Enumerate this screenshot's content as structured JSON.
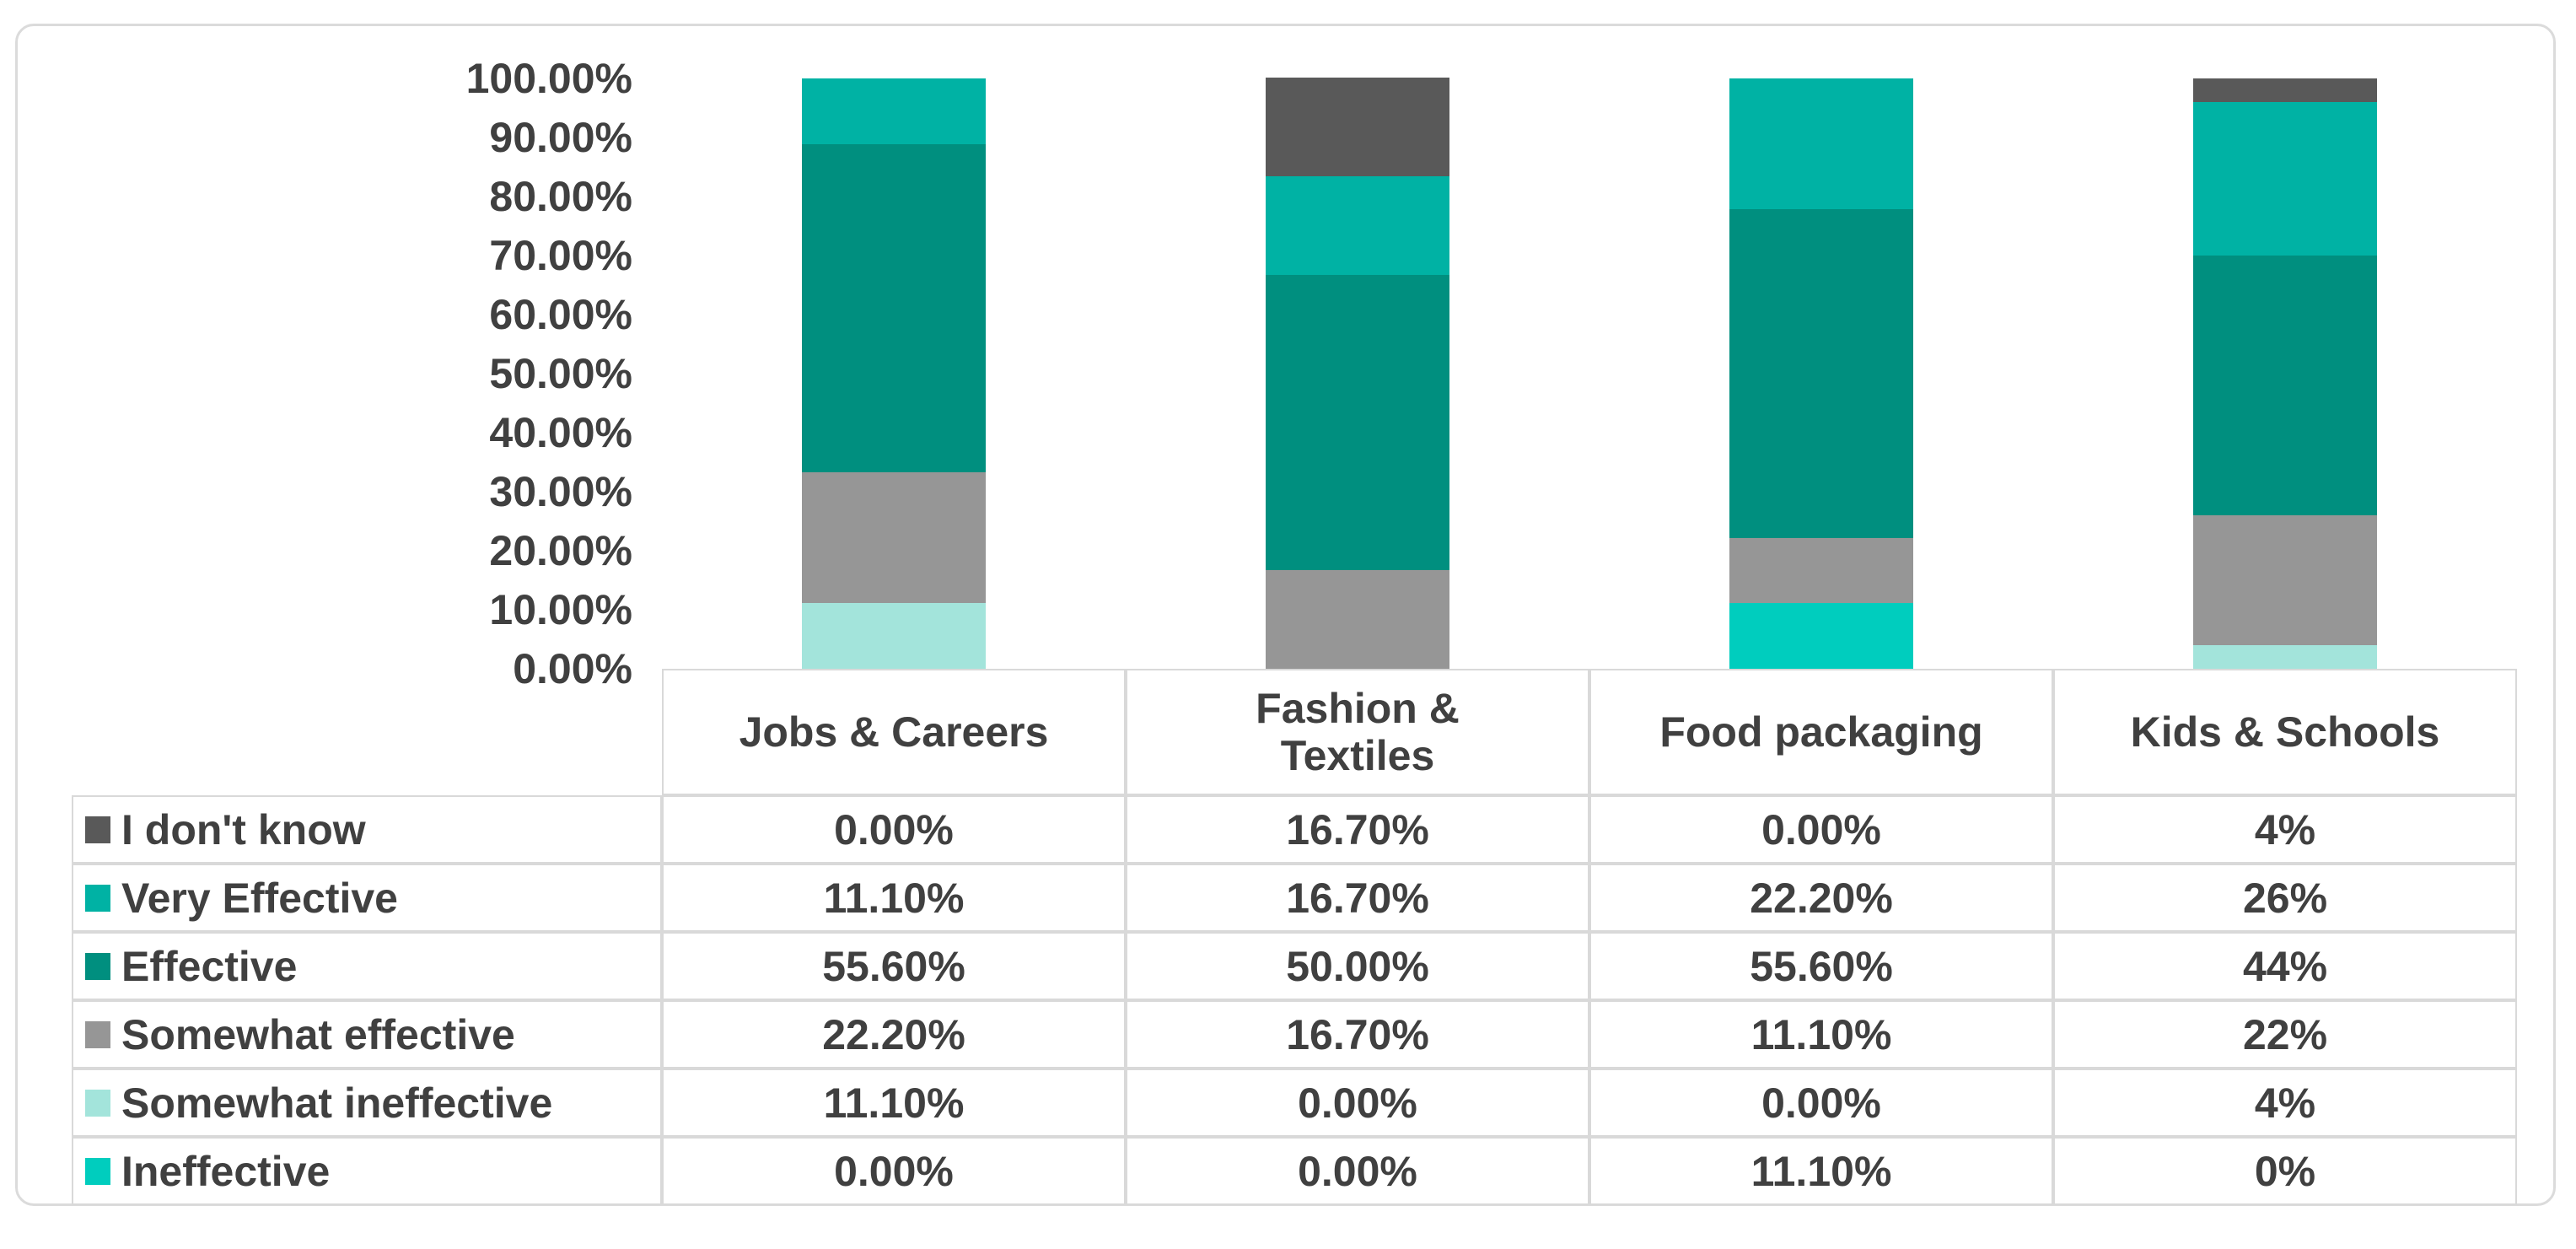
{
  "chart_data": {
    "type": "bar",
    "stacked": true,
    "title": "",
    "xlabel": "",
    "ylabel": "",
    "categories": [
      "Jobs & Careers",
      "Fashion & Textiles",
      "Food packaging",
      "Kids & Schools"
    ],
    "series": [
      {
        "name": "I don't know",
        "color": "#595959",
        "values": [
          0,
          16.7,
          0,
          4
        ],
        "labels": [
          "0.00%",
          "16.70%",
          "0.00%",
          "4%"
        ]
      },
      {
        "name": "Very Effective",
        "color": "#00B2A4",
        "values": [
          11.1,
          16.7,
          22.2,
          26
        ],
        "labels": [
          "11.10%",
          "16.70%",
          "22.20%",
          "26%"
        ]
      },
      {
        "name": "Effective",
        "color": "#008F7F",
        "values": [
          55.6,
          50,
          55.6,
          44
        ],
        "labels": [
          "55.60%",
          "50.00%",
          "55.60%",
          "44%"
        ]
      },
      {
        "name": "Somewhat effective",
        "color": "#969696",
        "values": [
          22.2,
          16.7,
          11.1,
          22
        ],
        "labels": [
          "22.20%",
          "16.70%",
          "11.10%",
          "22%"
        ]
      },
      {
        "name": "Somewhat ineffective",
        "color": "#A3E4DB",
        "values": [
          11.1,
          0,
          0,
          4
        ],
        "labels": [
          "11.10%",
          "0.00%",
          "0.00%",
          "4%"
        ]
      },
      {
        "name": "Ineffective",
        "color": "#00CDBE",
        "values": [
          0,
          0,
          11.1,
          0
        ],
        "labels": [
          "0.00%",
          "0.00%",
          "11.10%",
          "0%"
        ]
      }
    ],
    "y_axis": {
      "min": 0,
      "max": 100,
      "ticks": [
        "100.00%",
        "90.00%",
        "80.00%",
        "70.00%",
        "60.00%",
        "50.00%",
        "40.00%",
        "30.00%",
        "20.00%",
        "10.00%",
        "0.00%"
      ]
    },
    "gridlines": false,
    "legend_position": "data-table-left-column",
    "bar_stack_order_top_to_bottom": [
      "I don't know",
      "Very Effective",
      "Effective",
      "Somewhat effective",
      "Somewhat ineffective",
      "Ineffective"
    ],
    "colors": {
      "text": "#404040",
      "table_border": "#d9d9d9",
      "slide_border": "#dbdbdb",
      "background": "#ffffff"
    }
  }
}
